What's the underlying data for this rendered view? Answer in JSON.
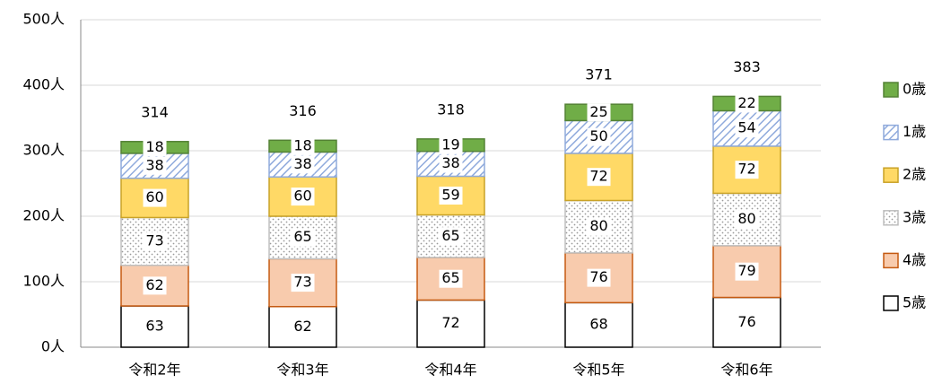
{
  "chart_data": {
    "type": "stacked_bar",
    "categories": [
      "令和2年",
      "令和3年",
      "令和4年",
      "令和5年",
      "令和6年"
    ],
    "series": [
      {
        "name": "5歳",
        "color": "#ffffff",
        "values": [
          63,
          62,
          72,
          68,
          76
        ]
      },
      {
        "name": "4歳",
        "color": "#f8cbad",
        "values": [
          62,
          73,
          65,
          76,
          79
        ]
      },
      {
        "name": "3歳",
        "color": "#ffffff",
        "pattern": "dots",
        "values": [
          73,
          65,
          65,
          80,
          80
        ]
      },
      {
        "name": "2歳",
        "color": "#ffd966",
        "values": [
          60,
          60,
          59,
          72,
          72
        ]
      },
      {
        "name": "1歳",
        "color": "#8faadc",
        "pattern": "hatch",
        "values": [
          38,
          38,
          38,
          50,
          54
        ]
      },
      {
        "name": "0歳",
        "color": "#70ad47",
        "values": [
          18,
          18,
          19,
          25,
          22
        ]
      }
    ],
    "totals": [
      314,
      316,
      318,
      371,
      383
    ],
    "ylim": [
      0,
      500
    ],
    "yticks": [
      {
        "value": 0,
        "label": "0人"
      },
      {
        "value": 100,
        "label": "100人"
      },
      {
        "value": 200,
        "label": "200人"
      },
      {
        "value": 300,
        "label": "300人"
      },
      {
        "value": 400,
        "label": "400人"
      },
      {
        "value": 500,
        "label": "500人"
      }
    ],
    "grid": true,
    "legend": "right"
  }
}
